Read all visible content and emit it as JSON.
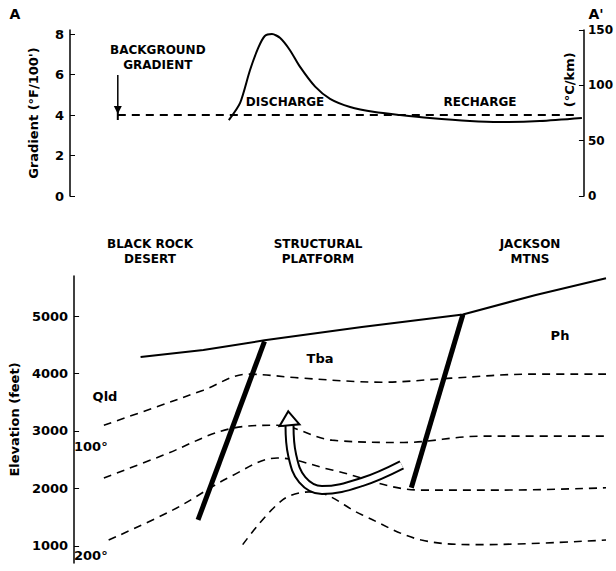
{
  "chart_data": [
    {
      "type": "line",
      "corner_labels": [
        "A",
        "A'"
      ],
      "ylabel": "Gradient (°F/100')",
      "y2label": "(°C/km)",
      "xlim": [
        0,
        100
      ],
      "ylim": [
        0,
        8.2
      ],
      "yticks": [
        0,
        2,
        4,
        6,
        8
      ],
      "y2lim": [
        0,
        150
      ],
      "y2ticks": [
        0,
        50,
        100,
        150
      ],
      "tick_labels": "y",
      "grid": false,
      "annotations": [
        "BACKGROUND GRADIENT",
        "DISCHARGE",
        "RECHARGE"
      ],
      "series": [
        {
          "x": [
            30.9,
            33.1,
            35.0,
            36.6,
            37.9,
            39.3,
            40.9,
            42.8,
            44.7,
            47.7,
            50.6,
            54.5,
            59.3,
            64.2,
            70.0,
            77.8,
            83.7,
            91.4,
            99.6
          ],
          "values": [
            3.75,
            4.6,
            6.2,
            7.3,
            7.9,
            8.0,
            7.8,
            7.2,
            6.4,
            5.4,
            4.8,
            4.4,
            4.15,
            4.0,
            3.85,
            3.7,
            3.65,
            3.7,
            3.85
          ],
          "color": "#000000",
          "line_style": "solid"
        },
        {
          "x": [
            9.3,
            99
          ],
          "values": [
            4,
            4
          ],
          "color": "#000000",
          "line_style": "dashed"
        }
      ]
    },
    {
      "type": "line",
      "ylabel": "Elevation (feet)",
      "xlim": [
        0,
        100
      ],
      "ylim": [
        700,
        5700
      ],
      "yticks": [
        1000,
        2000,
        3000,
        4000,
        5000
      ],
      "tick_labels": "y",
      "grid": false,
      "regions": [
        "BLACK ROCK DESERT",
        "STRUCTURAL PLATFORM",
        "JACKSON MTNS"
      ],
      "units": [
        "Qld",
        "Tba",
        "Ph"
      ],
      "isotherm_labels": [
        "100°",
        "200°"
      ],
      "series": [
        {
          "type": "line",
          "line_style": "solid",
          "color": "#000000",
          "x": [
            12.5,
            24.3,
            35.8,
            54.1,
            73.1,
            86.8,
            100
          ],
          "values": [
            4290,
            4410,
            4580,
            4810,
            5030,
            5370,
            5660
          ]
        },
        {
          "type": "line",
          "line_style": "dashed",
          "color": "#000000",
          "x": [
            5.6,
            14.9,
            24.3,
            32.6,
            42.9,
            57.8,
            70.9,
            85.8,
            100
          ],
          "values": [
            3100,
            3400,
            3710,
            3990,
            3920,
            3850,
            3920,
            3990,
            3990
          ]
        },
        {
          "type": "line",
          "line_style": "dashed",
          "color": "#000000",
          "x": [
            5.6,
            16.8,
            29.9,
            38.2,
            48.5,
            62.0,
            76.5,
            100
          ],
          "values": [
            2180,
            2580,
            3050,
            3100,
            2840,
            2800,
            2910,
            2910
          ]
        },
        {
          "type": "line",
          "line_style": "dashed",
          "color": "#000000",
          "x": [
            6.5,
            18.7,
            29.9,
            38.2,
            48.5,
            65.3,
            80.2,
            100
          ],
          "values": [
            1100,
            1630,
            2230,
            2530,
            2320,
            1970,
            1970,
            2010
          ]
        },
        {
          "type": "line",
          "line_style": "dashed",
          "color": "#000000",
          "x": [
            31.7,
            39.2,
            44.8,
            54.1,
            65.3,
            76.5,
            100
          ],
          "values": [
            1020,
            1800,
            1940,
            1540,
            1100,
            1020,
            1100
          ]
        },
        {
          "type": "fault",
          "line_style": "solid",
          "color": "#000000",
          "x": [
            23.3,
            35.8
          ],
          "values": [
            1450,
            4560
          ]
        },
        {
          "type": "fault",
          "line_style": "solid",
          "color": "#000000",
          "x": [
            63.4,
            73.1
          ],
          "values": [
            2010,
            5030
          ]
        },
        {
          "type": "flow",
          "line_style": "solid",
          "color": "#000000",
          "x": [
            61.6,
            54.1,
            46.6,
            42.9,
            41.0,
            40.5
          ],
          "values": [
            2410,
            2110,
            1970,
            2150,
            2580,
            3100
          ]
        }
      ]
    }
  ]
}
